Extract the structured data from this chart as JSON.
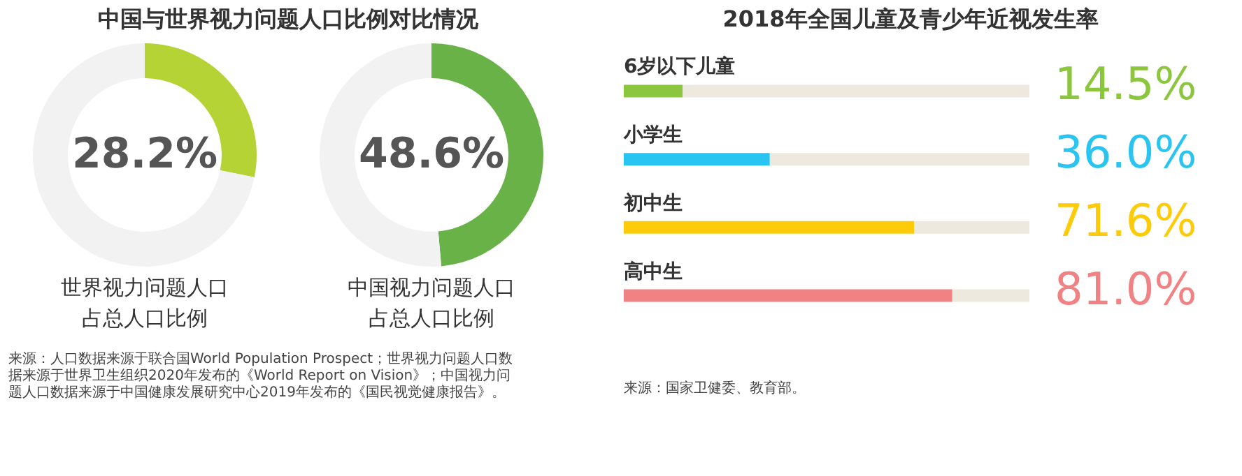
{
  "chart_data": [
    {
      "type": "donut",
      "title": "中国与世界视力问题人口比例对比情况",
      "categories": [
        null,
        null
      ],
      "xlabel": "世界视力问题人口占总人口比例",
      "values": [
        28.2,
        71.8
      ],
      "colors": [
        "#b5d334",
        "#f2f2f2"
      ],
      "value_labels": [
        "28.2%",
        null
      ]
    },
    {
      "type": "donut",
      "categories": [
        null,
        null
      ],
      "xlabel": "中国视力问题人口占总人口比例",
      "values": [
        48.6,
        51.4
      ],
      "colors": [
        "#68b247",
        "#f2f2f2"
      ],
      "value_labels": [
        "48.6%",
        null
      ],
      "annotations": [
        "来源：人口数据来源于联合国World Population Prospect；世界视力问题人口数据来源于世界卫生组织2020年发布的《World Report on Vision》；中国视力问题人口数据来源于中国健康发展研究中心2019年发布的《国民视觉健康报告》。"
      ]
    },
    {
      "type": "bar",
      "orientation": "horizontal",
      "stacked": true,
      "title": "2018年全国儿童及青少年近视发生率",
      "categories": [
        "6岁以下儿童",
        "小学生",
        "初中生",
        "高中生"
      ],
      "xlim": [
        0,
        100
      ],
      "tick_labels": false,
      "series": [
        {
          "values": [
            14.5,
            36.0,
            71.6,
            81.0
          ],
          "colors": [
            "#8cc63f",
            "#29c5f0",
            "#fdcb0a",
            "#f08283"
          ],
          "value_labels": [
            "14.5%",
            "36.0%",
            "71.6%",
            "81.0%"
          ]
        },
        {
          "values": [
            85.5,
            64.0,
            28.4,
            19.0
          ],
          "color": "#ede9df"
        }
      ],
      "annotations": [
        "来源：国家卫健委、教育部。"
      ]
    }
  ]
}
